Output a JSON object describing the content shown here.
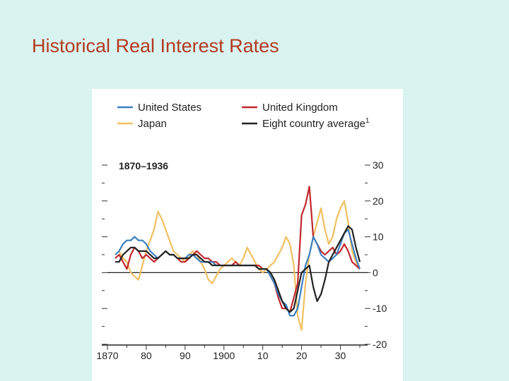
{
  "slide": {
    "title": "Historical Real Interest Rates"
  },
  "chart_data": {
    "type": "line",
    "period_label": "1870–1936",
    "title": "",
    "xlabel": "",
    "ylabel": "",
    "xlim": [
      1870,
      1937
    ],
    "ylim": [
      -20,
      30
    ],
    "x_ticks": [
      {
        "value": 1870,
        "label": "1870"
      },
      {
        "value": 1880,
        "label": "80"
      },
      {
        "value": 1890,
        "label": "90"
      },
      {
        "value": 1900,
        "label": "1900"
      },
      {
        "value": 1910,
        "label": "10"
      },
      {
        "value": 1920,
        "label": "20"
      },
      {
        "value": 1930,
        "label": "30"
      }
    ],
    "y_ticks": [
      {
        "value": 30,
        "label": "30"
      },
      {
        "value": 20,
        "label": "20"
      },
      {
        "value": 10,
        "label": "10"
      },
      {
        "value": 0,
        "label": "0"
      },
      {
        "value": -10,
        "label": "-10"
      },
      {
        "value": -20,
        "label": "-20"
      }
    ],
    "legend": {
      "placement": "top",
      "entries": [
        {
          "label": "United States",
          "color": "#3b7fc0"
        },
        {
          "label": "United Kingdom",
          "color": "#c1272d"
        },
        {
          "label": "Japan",
          "color": "#f0c060"
        },
        {
          "label": "Eight country average",
          "superscript": "1",
          "color": "#222222"
        }
      ]
    },
    "grid": false,
    "series": [
      {
        "name": "Japan",
        "color": "#f0c060",
        "points": [
          [
            1872,
            5
          ],
          [
            1873,
            6
          ],
          [
            1874,
            4
          ],
          [
            1875,
            3
          ],
          [
            1876,
            0
          ],
          [
            1877,
            -1
          ],
          [
            1878,
            -2
          ],
          [
            1879,
            2
          ],
          [
            1880,
            6
          ],
          [
            1881,
            9
          ],
          [
            1882,
            12
          ],
          [
            1883,
            17
          ],
          [
            1884,
            15
          ],
          [
            1885,
            12
          ],
          [
            1886,
            9
          ],
          [
            1887,
            6
          ],
          [
            1888,
            5
          ],
          [
            1889,
            4
          ],
          [
            1890,
            3
          ],
          [
            1891,
            5
          ],
          [
            1892,
            6
          ],
          [
            1893,
            5
          ],
          [
            1894,
            3
          ],
          [
            1895,
            1
          ],
          [
            1896,
            -2
          ],
          [
            1897,
            -3
          ],
          [
            1898,
            -1
          ],
          [
            1899,
            1
          ],
          [
            1900,
            2
          ],
          [
            1901,
            3
          ],
          [
            1902,
            4
          ],
          [
            1903,
            3
          ],
          [
            1904,
            2
          ],
          [
            1905,
            4
          ],
          [
            1906,
            7
          ],
          [
            1907,
            5
          ],
          [
            1908,
            3
          ],
          [
            1909,
            1
          ],
          [
            1910,
            0
          ],
          [
            1911,
            1
          ],
          [
            1912,
            2
          ],
          [
            1913,
            3
          ],
          [
            1914,
            5
          ],
          [
            1915,
            7
          ],
          [
            1916,
            10
          ],
          [
            1917,
            8
          ],
          [
            1918,
            2
          ],
          [
            1919,
            -12
          ],
          [
            1920,
            -16
          ],
          [
            1921,
            -3
          ],
          [
            1922,
            5
          ],
          [
            1923,
            10
          ],
          [
            1924,
            14
          ],
          [
            1925,
            18
          ],
          [
            1926,
            12
          ],
          [
            1927,
            8
          ],
          [
            1928,
            10
          ],
          [
            1929,
            15
          ],
          [
            1930,
            18
          ],
          [
            1931,
            20
          ],
          [
            1932,
            14
          ],
          [
            1933,
            6
          ],
          [
            1934,
            3
          ],
          [
            1935,
            1
          ]
        ]
      },
      {
        "name": "United Kingdom",
        "color": "#c1272d",
        "points": [
          [
            1872,
            4
          ],
          [
            1873,
            5
          ],
          [
            1874,
            3
          ],
          [
            1875,
            1
          ],
          [
            1876,
            5
          ],
          [
            1877,
            7
          ],
          [
            1878,
            6
          ],
          [
            1879,
            4
          ],
          [
            1880,
            5
          ],
          [
            1881,
            4
          ],
          [
            1882,
            3
          ],
          [
            1883,
            4
          ],
          [
            1884,
            5
          ],
          [
            1885,
            6
          ],
          [
            1886,
            5
          ],
          [
            1887,
            5
          ],
          [
            1888,
            4
          ],
          [
            1889,
            3
          ],
          [
            1890,
            3
          ],
          [
            1891,
            4
          ],
          [
            1892,
            5
          ],
          [
            1893,
            6
          ],
          [
            1894,
            5
          ],
          [
            1895,
            4
          ],
          [
            1896,
            4
          ],
          [
            1897,
            3
          ],
          [
            1898,
            3
          ],
          [
            1899,
            2
          ],
          [
            1900,
            2
          ],
          [
            1901,
            2
          ],
          [
            1902,
            2
          ],
          [
            1903,
            3
          ],
          [
            1904,
            2
          ],
          [
            1905,
            2
          ],
          [
            1906,
            2
          ],
          [
            1907,
            2
          ],
          [
            1908,
            2
          ],
          [
            1909,
            2
          ],
          [
            1910,
            1
          ],
          [
            1911,
            1
          ],
          [
            1912,
            -1
          ],
          [
            1913,
            -3
          ],
          [
            1914,
            -7
          ],
          [
            1915,
            -10
          ],
          [
            1916,
            -10
          ],
          [
            1917,
            -11
          ],
          [
            1918,
            -7
          ],
          [
            1919,
            -3
          ],
          [
            1920,
            16
          ],
          [
            1921,
            19
          ],
          [
            1922,
            24
          ],
          [
            1923,
            10
          ],
          [
            1924,
            8
          ],
          [
            1925,
            6
          ],
          [
            1926,
            5
          ],
          [
            1927,
            6
          ],
          [
            1928,
            7
          ],
          [
            1929,
            5
          ],
          [
            1930,
            6
          ],
          [
            1931,
            8
          ],
          [
            1932,
            6
          ],
          [
            1933,
            3
          ],
          [
            1934,
            2
          ],
          [
            1935,
            1
          ]
        ]
      },
      {
        "name": "United States",
        "color": "#3b7fc0",
        "points": [
          [
            1872,
            5
          ],
          [
            1873,
            6
          ],
          [
            1874,
            8
          ],
          [
            1875,
            9
          ],
          [
            1876,
            9
          ],
          [
            1877,
            10
          ],
          [
            1878,
            9
          ],
          [
            1879,
            9
          ],
          [
            1880,
            8
          ],
          [
            1881,
            6
          ],
          [
            1882,
            5
          ],
          [
            1883,
            4
          ],
          [
            1884,
            5
          ],
          [
            1885,
            6
          ],
          [
            1886,
            5
          ],
          [
            1887,
            5
          ],
          [
            1888,
            4
          ],
          [
            1889,
            4
          ],
          [
            1890,
            4
          ],
          [
            1891,
            5
          ],
          [
            1892,
            5
          ],
          [
            1893,
            4
          ],
          [
            1894,
            3
          ],
          [
            1895,
            3
          ],
          [
            1896,
            3
          ],
          [
            1897,
            3
          ],
          [
            1898,
            2
          ],
          [
            1899,
            2
          ],
          [
            1900,
            2
          ],
          [
            1901,
            2
          ],
          [
            1902,
            2
          ],
          [
            1903,
            2
          ],
          [
            1904,
            2
          ],
          [
            1905,
            2
          ],
          [
            1906,
            2
          ],
          [
            1907,
            2
          ],
          [
            1908,
            2
          ],
          [
            1909,
            1
          ],
          [
            1910,
            1
          ],
          [
            1911,
            1
          ],
          [
            1912,
            -1
          ],
          [
            1913,
            -3
          ],
          [
            1914,
            -6
          ],
          [
            1915,
            -8
          ],
          [
            1916,
            -9
          ],
          [
            1917,
            -12
          ],
          [
            1918,
            -12
          ],
          [
            1919,
            -10
          ],
          [
            1920,
            -4
          ],
          [
            1921,
            2
          ],
          [
            1922,
            5
          ],
          [
            1923,
            10
          ],
          [
            1924,
            8
          ],
          [
            1925,
            5
          ],
          [
            1926,
            4
          ],
          [
            1927,
            3
          ],
          [
            1928,
            4
          ],
          [
            1929,
            5
          ],
          [
            1930,
            8
          ],
          [
            1931,
            11
          ],
          [
            1932,
            12
          ],
          [
            1933,
            8
          ],
          [
            1934,
            4
          ],
          [
            1935,
            1
          ]
        ]
      },
      {
        "name": "Eight country average",
        "color": "#222222",
        "points": [
          [
            1872,
            3
          ],
          [
            1873,
            3
          ],
          [
            1874,
            5
          ],
          [
            1875,
            6
          ],
          [
            1876,
            7
          ],
          [
            1877,
            7
          ],
          [
            1878,
            6
          ],
          [
            1879,
            6
          ],
          [
            1880,
            6
          ],
          [
            1881,
            5
          ],
          [
            1882,
            4
          ],
          [
            1883,
            4
          ],
          [
            1884,
            5
          ],
          [
            1885,
            6
          ],
          [
            1886,
            5
          ],
          [
            1887,
            5
          ],
          [
            1888,
            4
          ],
          [
            1889,
            4
          ],
          [
            1890,
            4
          ],
          [
            1891,
            4
          ],
          [
            1892,
            5
          ],
          [
            1893,
            5
          ],
          [
            1894,
            4
          ],
          [
            1895,
            3
          ],
          [
            1896,
            3
          ],
          [
            1897,
            2
          ],
          [
            1898,
            2
          ],
          [
            1899,
            2
          ],
          [
            1900,
            2
          ],
          [
            1901,
            2
          ],
          [
            1902,
            2
          ],
          [
            1903,
            2
          ],
          [
            1904,
            2
          ],
          [
            1905,
            2
          ],
          [
            1906,
            2
          ],
          [
            1907,
            2
          ],
          [
            1908,
            2
          ],
          [
            1909,
            1
          ],
          [
            1910,
            1
          ],
          [
            1911,
            1
          ],
          [
            1912,
            0
          ],
          [
            1913,
            -2
          ],
          [
            1914,
            -5
          ],
          [
            1915,
            -8
          ],
          [
            1916,
            -10
          ],
          [
            1917,
            -11
          ],
          [
            1918,
            -10
          ],
          [
            1919,
            -5
          ],
          [
            1920,
            0
          ],
          [
            1921,
            1
          ],
          [
            1922,
            2
          ],
          [
            1923,
            -4
          ],
          [
            1924,
            -8
          ],
          [
            1925,
            -6
          ],
          [
            1926,
            -2
          ],
          [
            1927,
            3
          ],
          [
            1928,
            5
          ],
          [
            1929,
            7
          ],
          [
            1930,
            9
          ],
          [
            1931,
            11
          ],
          [
            1932,
            13
          ],
          [
            1933,
            12
          ],
          [
            1934,
            7
          ],
          [
            1935,
            3
          ]
        ]
      }
    ]
  }
}
